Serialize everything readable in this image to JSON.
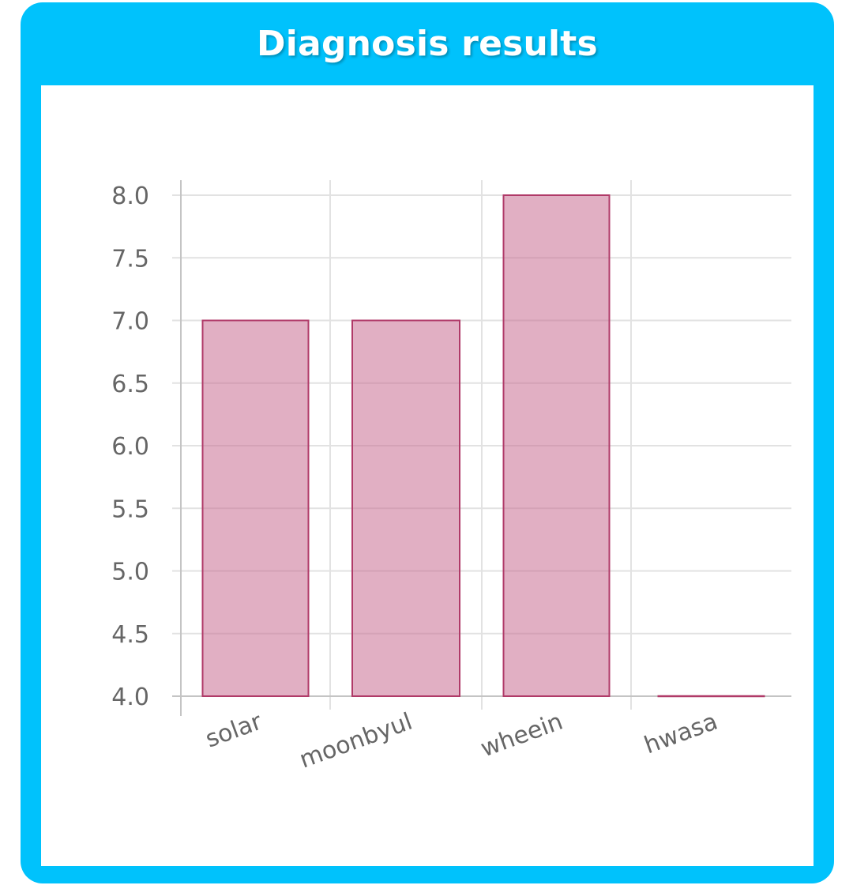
{
  "card": {
    "title": "Diagnosis results",
    "accent": "#00c2fc"
  },
  "chart_data": {
    "type": "bar",
    "categories": [
      "solar",
      "moonbyul",
      "wheein",
      "hwasa"
    ],
    "values": [
      7,
      7,
      8,
      4
    ],
    "ylim": [
      4,
      8
    ],
    "yticks": [
      "4.0",
      "4.5",
      "5.0",
      "5.5",
      "6.0",
      "6.5",
      "7.0",
      "7.5",
      "8.0"
    ],
    "grid": true,
    "legend": "none",
    "bar_fill": "rgba(200,110,145,0.55)",
    "bar_stroke": "#b03a68"
  }
}
